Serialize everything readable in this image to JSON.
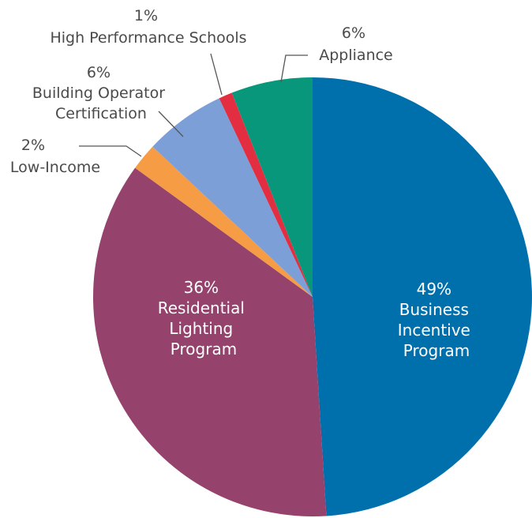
{
  "chart_data": {
    "type": "pie",
    "title": "",
    "slices": [
      {
        "id": "business",
        "name_lines": [
          "Business",
          "Incentive",
          "Program"
        ],
        "pct": 49,
        "label": "49%",
        "color": "#0070AD"
      },
      {
        "id": "residential",
        "name_lines": [
          "Residential",
          "Lighting",
          "Program"
        ],
        "pct": 36,
        "label": "36%",
        "color": "#95426D"
      },
      {
        "id": "lowincome",
        "name_lines": [
          "Low-Income"
        ],
        "pct": 2,
        "label": "2%",
        "color": "#F59C45"
      },
      {
        "id": "building",
        "name_lines": [
          "Building Operator",
          "Certification"
        ],
        "pct": 6,
        "label": "6%",
        "color": "#7D9FD7"
      },
      {
        "id": "hps",
        "name_lines": [
          "High Performance Schools"
        ],
        "pct": 1,
        "label": "1%",
        "color": "#E22E40"
      },
      {
        "id": "appliance",
        "name_lines": [
          "Appliance"
        ],
        "pct": 6,
        "label": "6%",
        "color": "#08977A"
      }
    ]
  }
}
